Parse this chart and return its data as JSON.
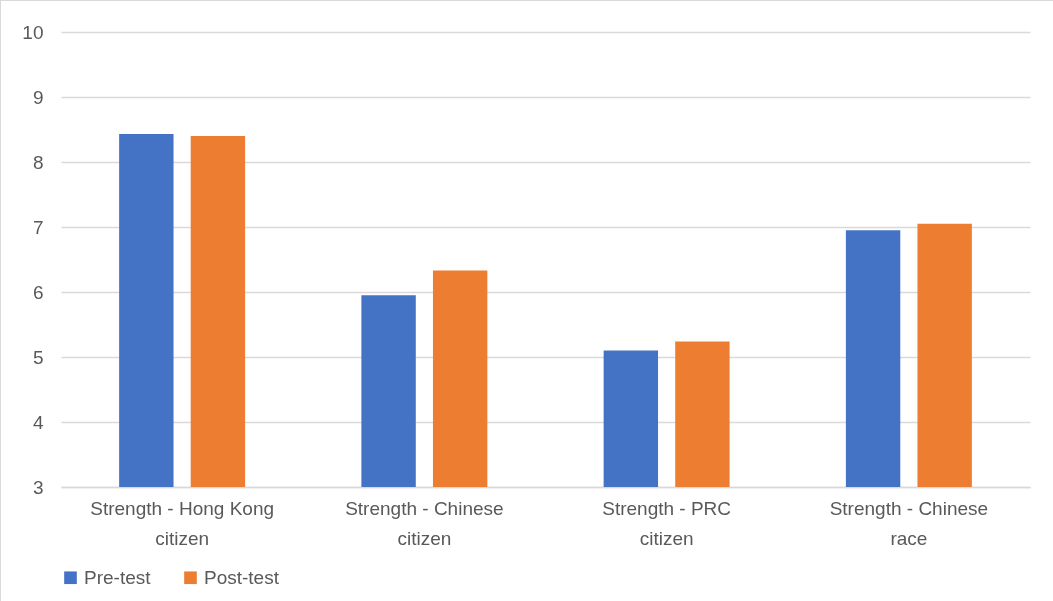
{
  "chart_data": {
    "type": "bar",
    "categories": [
      "Strength - Hong Kong citizen",
      "Strength - Chinese citizen",
      "Strength - PRC citizen",
      "Strength - Chinese race"
    ],
    "series": [
      {
        "name": "Pre-test",
        "color": "#4472c4",
        "values": [
          8.43,
          5.95,
          5.1,
          6.95
        ]
      },
      {
        "name": "Post-test",
        "color": "#ed7d31",
        "values": [
          8.4,
          6.33,
          5.24,
          7.05
        ]
      }
    ],
    "ylim": [
      3,
      10
    ],
    "yticks": [
      3,
      4,
      5,
      6,
      7,
      8,
      9,
      10
    ],
    "grid": "y",
    "legend": "bottom"
  }
}
